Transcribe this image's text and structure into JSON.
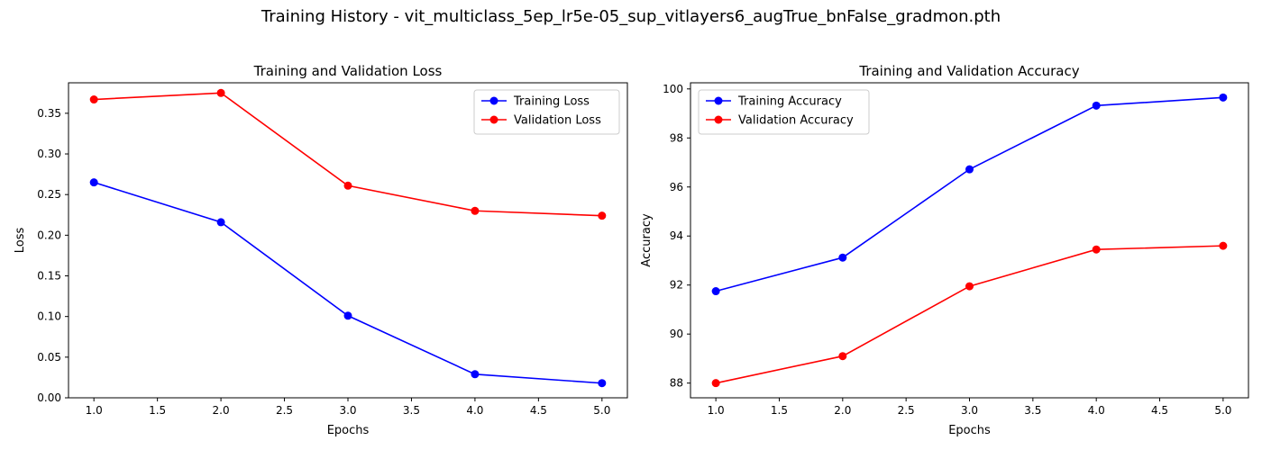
{
  "figure": {
    "suptitle": "Training History - vit_multiclass_5ep_lr5e-05_sup_vitlayers6_augTrue_bnFalse_gradmon.pth"
  },
  "chart_data": [
    {
      "type": "line",
      "title": "Training and Validation Loss",
      "xlabel": "Epochs",
      "ylabel": "Loss",
      "x": [
        1,
        2,
        3,
        4,
        5
      ],
      "xlim": [
        0.8,
        5.2
      ],
      "ylim": [
        0.0,
        0.3875
      ],
      "xticks": [
        "1.0",
        "1.5",
        "2.0",
        "2.5",
        "3.0",
        "3.5",
        "4.0",
        "4.5",
        "5.0"
      ],
      "yticks": [
        "0.00",
        "0.05",
        "0.10",
        "0.15",
        "0.20",
        "0.25",
        "0.30",
        "0.35"
      ],
      "grid": false,
      "legend_position": "top-right",
      "series": [
        {
          "name": "Training Loss",
          "color": "#0000ff",
          "marker": "circle",
          "values": [
            0.265,
            0.216,
            0.101,
            0.029,
            0.018
          ]
        },
        {
          "name": "Validation Loss",
          "color": "#ff0000",
          "marker": "circle",
          "values": [
            0.367,
            0.375,
            0.261,
            0.23,
            0.224
          ]
        }
      ]
    },
    {
      "type": "line",
      "title": "Training and Validation Accuracy",
      "xlabel": "Epochs",
      "ylabel": "Accuracy",
      "x": [
        1,
        2,
        3,
        4,
        5
      ],
      "xlim": [
        0.8,
        5.2
      ],
      "ylim": [
        87.4,
        100.25
      ],
      "xticks": [
        "1.0",
        "1.5",
        "2.0",
        "2.5",
        "3.0",
        "3.5",
        "4.0",
        "4.5",
        "5.0"
      ],
      "yticks": [
        "88",
        "90",
        "92",
        "94",
        "96",
        "98",
        "100"
      ],
      "grid": false,
      "legend_position": "top-left",
      "series": [
        {
          "name": "Training Accuracy",
          "color": "#0000ff",
          "marker": "circle",
          "values": [
            91.75,
            93.12,
            96.72,
            99.32,
            99.65
          ]
        },
        {
          "name": "Validation Accuracy",
          "color": "#ff0000",
          "marker": "circle",
          "values": [
            88.0,
            89.1,
            91.95,
            93.45,
            93.6
          ]
        }
      ]
    }
  ]
}
